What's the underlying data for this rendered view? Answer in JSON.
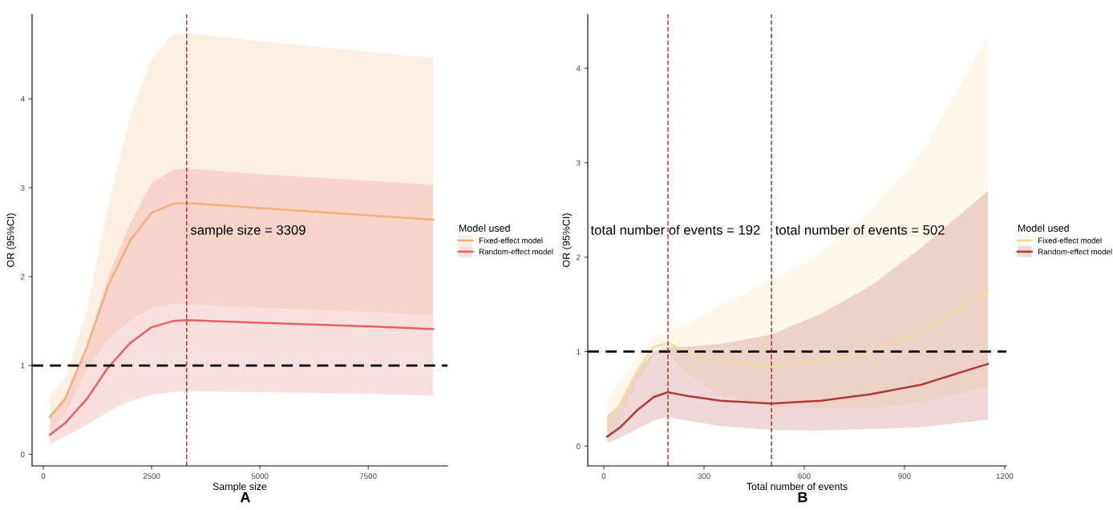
{
  "chart_data": [
    {
      "type": "line",
      "title": "A",
      "xlabel": "Sample size",
      "ylabel": "OR (95%CI)",
      "legend_title": "Model used",
      "legend": "right",
      "x": [
        150,
        500,
        1000,
        1500,
        2000,
        2500,
        3000,
        3309,
        5000,
        7500,
        9000
      ],
      "xlim": [
        -260,
        9330
      ],
      "xticks": [
        0,
        2500,
        5000,
        7500
      ],
      "ylim": [
        -0.13,
        4.95
      ],
      "yticks": [
        0,
        1,
        2,
        3,
        4
      ],
      "grid": false,
      "series": [
        {
          "name": "Fixed-effect model",
          "color": "#f0b27a",
          "values": [
            0.42,
            0.62,
            1.2,
            1.9,
            2.4,
            2.72,
            2.82,
            2.83,
            2.77,
            2.69,
            2.64
          ],
          "lower": [
            0.27,
            0.45,
            0.95,
            1.3,
            1.5,
            1.65,
            1.69,
            1.69,
            1.65,
            1.6,
            1.57
          ],
          "upper": [
            0.65,
            0.85,
            1.6,
            2.8,
            3.8,
            4.45,
            4.72,
            4.74,
            4.65,
            4.53,
            4.46
          ]
        },
        {
          "name": "Random-effect model",
          "color": "#e8605f",
          "values": [
            0.22,
            0.35,
            0.62,
            0.98,
            1.25,
            1.43,
            1.5,
            1.51,
            1.48,
            1.44,
            1.41
          ],
          "lower": [
            0.11,
            0.2,
            0.33,
            0.48,
            0.6,
            0.67,
            0.7,
            0.71,
            0.7,
            0.68,
            0.66
          ],
          "upper": [
            0.45,
            0.65,
            1.2,
            2.0,
            2.6,
            3.05,
            3.2,
            3.22,
            3.15,
            3.08,
            3.03
          ]
        }
      ],
      "ref_lines": [
        {
          "axis": "y",
          "value": 1,
          "color": "#000000",
          "line_style": "dashed"
        },
        {
          "axis": "x",
          "value": 3309,
          "color": "#b22222",
          "line_style": "dashed",
          "label": "sample size = 3309"
        }
      ]
    },
    {
      "type": "line",
      "title": "B",
      "xlabel": "Total number of events",
      "ylabel": "OR (95%CI)",
      "legend_title": "Model used",
      "legend": "right",
      "x": [
        10,
        50,
        100,
        150,
        192,
        250,
        350,
        502,
        650,
        800,
        950,
        1150
      ],
      "xlim": [
        -48,
        1205
      ],
      "xticks": [
        0,
        300,
        600,
        900,
        1200
      ],
      "ylim": [
        -0.21,
        4.57
      ],
      "yticks": [
        0,
        1,
        2,
        3,
        4
      ],
      "grid": false,
      "series": [
        {
          "name": "Fixed-effect model",
          "color": "#f3dc9b",
          "values": [
            0.2,
            0.45,
            0.8,
            1.05,
            1.09,
            1.0,
            0.9,
            0.85,
            0.9,
            1.0,
            1.2,
            1.65
          ],
          "lower": [
            0.08,
            0.29,
            0.67,
            0.96,
            0.97,
            0.77,
            0.54,
            0.41,
            0.4,
            0.4,
            0.46,
            0.63
          ],
          "upper": [
            0.5,
            0.7,
            0.95,
            1.15,
            1.22,
            1.3,
            1.5,
            1.76,
            2.05,
            2.5,
            3.1,
            4.35
          ]
        },
        {
          "name": "Random-effect model",
          "color": "#b03a38",
          "values": [
            0.1,
            0.2,
            0.38,
            0.52,
            0.57,
            0.53,
            0.48,
            0.45,
            0.48,
            0.55,
            0.65,
            0.87
          ],
          "lower": [
            0.03,
            0.09,
            0.18,
            0.27,
            0.31,
            0.27,
            0.21,
            0.17,
            0.165,
            0.18,
            0.2,
            0.28
          ],
          "upper": [
            0.32,
            0.45,
            0.8,
            1.0,
            1.05,
            1.05,
            1.08,
            1.18,
            1.4,
            1.7,
            2.1,
            2.7
          ]
        }
      ],
      "ref_lines": [
        {
          "axis": "y",
          "value": 1,
          "color": "#000000",
          "line_style": "dashed"
        },
        {
          "axis": "x",
          "value": 192,
          "color": "#a52a2a",
          "line_style": "dashed",
          "label": "total number of events = 192"
        },
        {
          "axis": "x",
          "value": 502,
          "color": "#a52a2a",
          "line_style": "dashed",
          "label": "total number of events = 502"
        }
      ]
    }
  ]
}
